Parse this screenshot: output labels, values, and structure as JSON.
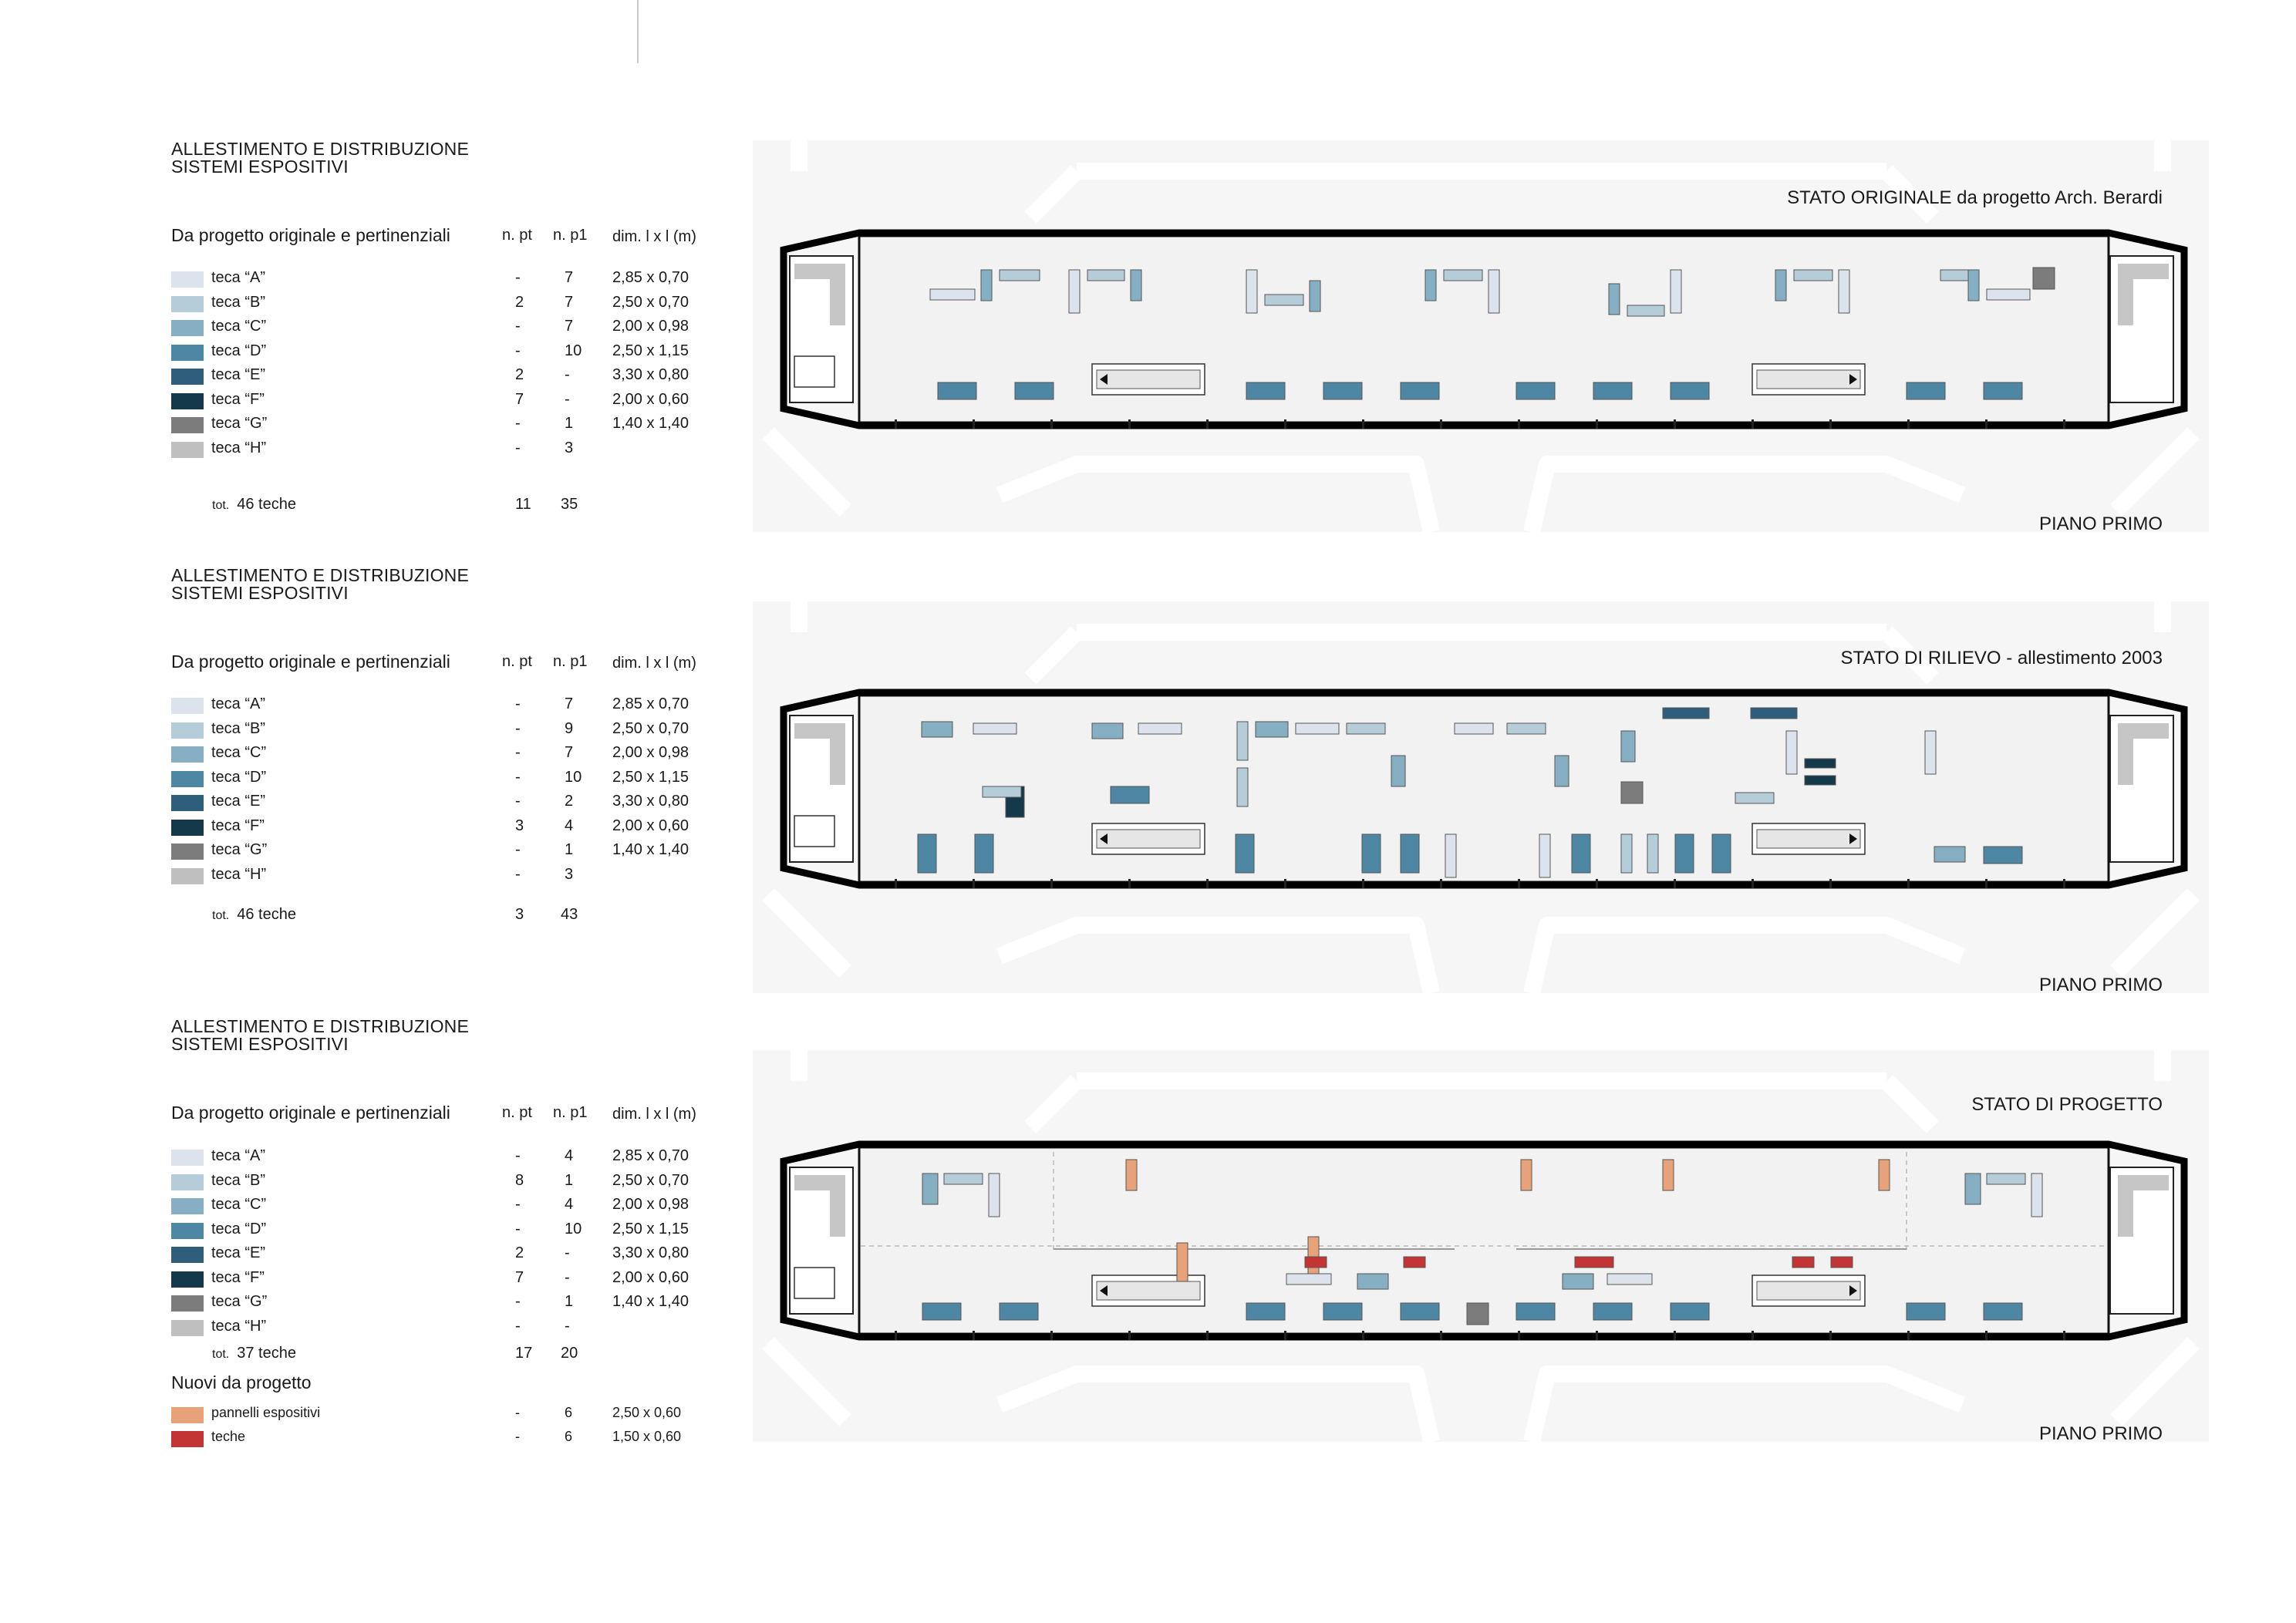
{
  "sections": [
    {
      "heading_line1": "ALLESTIMENTO E DISTRIBUZIONE",
      "heading_line2": "SISTEMI ESPOSITIVI",
      "subheading": "Da progetto originale e pertinenziali",
      "col_npt": "n. pt",
      "col_np1": "n. p1",
      "col_dim": "dim. l x l (m)",
      "rows": [
        {
          "label": "teca “A”",
          "npt": "-",
          "np1": "7",
          "dim": "2,85 x 0,70",
          "color": "#dde3ec"
        },
        {
          "label": "teca “B”",
          "npt": "2",
          "np1": "7",
          "dim": "2,50 x 0,70",
          "color": "#b5cdd9"
        },
        {
          "label": "teca “C”",
          "npt": "-",
          "np1": "7",
          "dim": "2,00 x 0,98",
          "color": "#86afc3"
        },
        {
          "label": "teca “D”",
          "npt": "-",
          "np1": "10",
          "dim": "2,50 x 1,15",
          "color": "#4e87a3"
        },
        {
          "label": "teca “E”",
          "npt": "2",
          "np1": "-",
          "dim": "3,30 x 0,80",
          "color": "#2f5e7d"
        },
        {
          "label": "teca “F”",
          "npt": "7",
          "np1": "-",
          "dim": "2,00 x 0,60",
          "color": "#14394a"
        },
        {
          "label": "teca “G”",
          "npt": "-",
          "np1": "1",
          "dim": "1,40 x 1,40",
          "color": "#7c7c7c"
        },
        {
          "label": "teca “H”",
          "npt": "-",
          "np1": "3",
          "dim": "",
          "color": "#bfbfbf"
        }
      ],
      "total_prefix": "tot.",
      "total_label": "46 teche",
      "total_npt": "11",
      "total_np1": "35",
      "plan_title": "STATO ORIGINALE  da progetto Arch. Berardi",
      "plan_floor": "PIANO PRIMO"
    },
    {
      "heading_line1": "ALLESTIMENTO E DISTRIBUZIONE",
      "heading_line2": "SISTEMI ESPOSITIVI",
      "subheading": "Da progetto originale e pertinenziali",
      "col_npt": "n. pt",
      "col_np1": "n. p1",
      "col_dim": "dim. l x l (m)",
      "rows": [
        {
          "label": "teca “A”",
          "npt": "-",
          "np1": "7",
          "dim": "2,85 x 0,70",
          "color": "#dde3ec"
        },
        {
          "label": "teca “B”",
          "npt": "-",
          "np1": "9",
          "dim": "2,50 x 0,70",
          "color": "#b5cdd9"
        },
        {
          "label": "teca “C”",
          "npt": "-",
          "np1": "7",
          "dim": "2,00 x 0,98",
          "color": "#86afc3"
        },
        {
          "label": "teca “D”",
          "npt": "-",
          "np1": "10",
          "dim": "2,50 x 1,15",
          "color": "#4e87a3"
        },
        {
          "label": "teca “E”",
          "npt": "-",
          "np1": "2",
          "dim": "3,30 x 0,80",
          "color": "#2f5e7d"
        },
        {
          "label": "teca “F”",
          "npt": "3",
          "np1": "4",
          "dim": "2,00 x 0,60",
          "color": "#14394a"
        },
        {
          "label": "teca “G”",
          "npt": "-",
          "np1": "1",
          "dim": "1,40 x 1,40",
          "color": "#7c7c7c"
        },
        {
          "label": "teca “H”",
          "npt": "-",
          "np1": "3",
          "dim": "",
          "color": "#bfbfbf"
        }
      ],
      "total_prefix": "tot.",
      "total_label": "46 teche",
      "total_npt": "3",
      "total_np1": "43",
      "plan_title": "STATO DI RILIEVO - allestimento 2003",
      "plan_floor": "PIANO PRIMO"
    },
    {
      "heading_line1": "ALLESTIMENTO E DISTRIBUZIONE",
      "heading_line2": "SISTEMI ESPOSITIVI",
      "subheading": "Da progetto originale e pertinenziali",
      "col_npt": "n. pt",
      "col_np1": "n. p1",
      "col_dim": "dim. l x l (m)",
      "rows": [
        {
          "label": "teca “A”",
          "npt": "-",
          "np1": "4",
          "dim": "2,85 x 0,70",
          "color": "#dde3ec"
        },
        {
          "label": "teca “B”",
          "npt": "8",
          "np1": "1",
          "dim": "2,50 x 0,70",
          "color": "#b5cdd9"
        },
        {
          "label": "teca “C”",
          "npt": "-",
          "np1": "4",
          "dim": "2,00 x 0,98",
          "color": "#86afc3"
        },
        {
          "label": "teca “D”",
          "npt": "-",
          "np1": "10",
          "dim": "2,50 x 1,15",
          "color": "#4e87a3"
        },
        {
          "label": "teca “E”",
          "npt": "2",
          "np1": "-",
          "dim": "3,30 x 0,80",
          "color": "#2f5e7d"
        },
        {
          "label": "teca “F”",
          "npt": "7",
          "np1": "-",
          "dim": "2,00 x 0,60",
          "color": "#14394a"
        },
        {
          "label": "teca “G”",
          "npt": "-",
          "np1": "1",
          "dim": "1,40 x 1,40",
          "color": "#7c7c7c"
        },
        {
          "label": "teca “H”",
          "npt": "-",
          "np1": "-",
          "dim": "",
          "color": "#bfbfbf"
        }
      ],
      "total_prefix": "tot.",
      "total_label": "37 teche",
      "total_npt": "17",
      "total_np1": "20",
      "new_heading": "Nuovi da progetto",
      "new_rows": [
        {
          "label": "pannelli espositivi",
          "npt": "-",
          "np1": "6",
          "dim": "2,50 x 0,60",
          "color": "#e8a27a"
        },
        {
          "label": "teche",
          "npt": "-",
          "np1": "6",
          "dim": "1,50 x 0,60",
          "color": "#c33434"
        }
      ],
      "plan_title": "STATO DI PROGETTO",
      "plan_floor": "PIANO PRIMO"
    }
  ]
}
